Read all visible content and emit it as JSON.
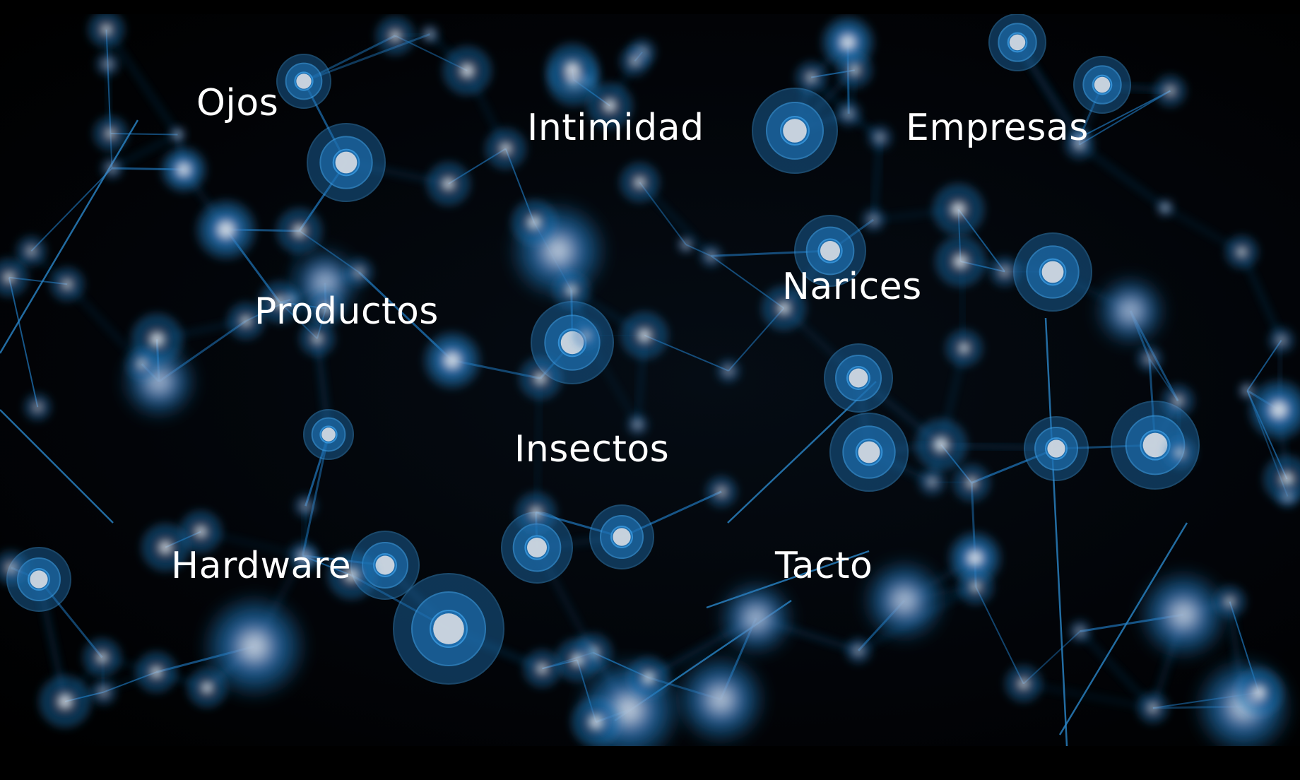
{
  "words": {
    "ojos": "Ojos",
    "intimidad": "Intimidad",
    "empresas": "Empresas",
    "productos": "Productos",
    "narices": "Narices",
    "insectos": "Insectos",
    "hardware": "Hardware",
    "tacto": "Tacto"
  },
  "colors": {
    "background": "#000000",
    "network_blue": "#1e6fb0",
    "node_core": "#d9dde2",
    "text": "#ffffff"
  }
}
